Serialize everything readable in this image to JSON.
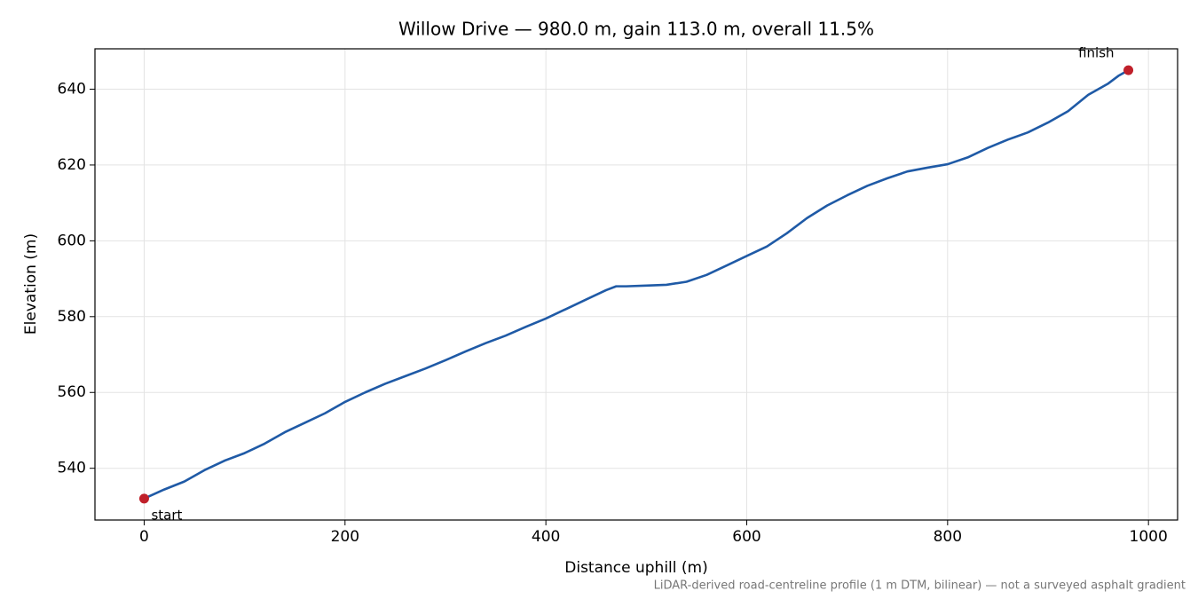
{
  "chart_data": {
    "type": "line",
    "title": "Willow Drive — 980.0 m, gain 113.0 m, overall 11.5%",
    "x_label": "Distance uphill (m)",
    "y_label": "Elevation (m)",
    "footnote": "LiDAR-derived road-centreline profile (1 m DTM, bilinear) — not a surveyed asphalt gradient",
    "x": [
      0,
      20,
      40,
      60,
      80,
      100,
      120,
      140,
      160,
      180,
      200,
      220,
      240,
      260,
      280,
      300,
      320,
      340,
      360,
      380,
      400,
      420,
      440,
      460,
      470,
      480,
      500,
      520,
      540,
      560,
      580,
      600,
      620,
      640,
      660,
      680,
      700,
      720,
      740,
      760,
      780,
      800,
      820,
      840,
      860,
      880,
      900,
      920,
      940,
      960,
      970,
      980
    ],
    "series": [
      {
        "name": "Elevation",
        "color": "#1f5aa6",
        "values": [
          532,
          534.4,
          536.5,
          539.5,
          542,
          544,
          546.5,
          549.5,
          552,
          554.5,
          557.5,
          560,
          562.3,
          564.3,
          566.3,
          568.5,
          570.8,
          573,
          575,
          577.3,
          579.5,
          582,
          584.5,
          587,
          588,
          588,
          588.2,
          588.4,
          589.2,
          591,
          593.5,
          596,
          598.5,
          602,
          606,
          609.3,
          612,
          614.5,
          616.5,
          618.3,
          619.3,
          620.2,
          622,
          624.5,
          626.7,
          628.6,
          631.2,
          634.2,
          638.5,
          641.5,
          643.5,
          645
        ]
      }
    ],
    "points": [
      {
        "label": "start",
        "x": 0,
        "y": 532
      },
      {
        "label": "finish",
        "x": 980,
        "y": 645
      }
    ],
    "point_color": "#c0202a",
    "xlim": [
      -49,
      1029
    ],
    "ylim": [
      526.35,
      650.65
    ],
    "xticks": [
      0,
      200,
      400,
      600,
      800,
      1000
    ],
    "yticks": [
      540,
      560,
      580,
      600,
      620,
      640
    ],
    "grid": true
  }
}
